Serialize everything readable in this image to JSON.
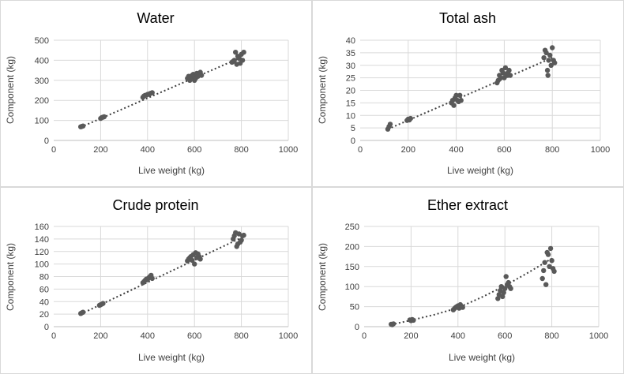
{
  "colors": {
    "point": "#595959",
    "trend": "#404040"
  },
  "chart_data": [
    {
      "type": "scatter",
      "title": "Water",
      "xlabel": "Live weight (kg)",
      "ylabel": "Component (kg)",
      "xlim": [
        0,
        1000
      ],
      "ylim": [
        0,
        500
      ],
      "xticks": [
        "0",
        "200",
        "400",
        "600",
        "800",
        "1000"
      ],
      "yticks": [
        "0",
        "100",
        "200",
        "300",
        "400",
        "500"
      ],
      "trendline": [
        [
          115,
          66
        ],
        [
          800,
          415
        ]
      ],
      "series": [
        {
          "name": "Water",
          "points": [
            [
              115,
              68
            ],
            [
              120,
              70
            ],
            [
              125,
              72
            ],
            [
              200,
              110
            ],
            [
              205,
              114
            ],
            [
              210,
              116
            ],
            [
              215,
              118
            ],
            [
              380,
              215
            ],
            [
              385,
              222
            ],
            [
              390,
              225
            ],
            [
              395,
              226
            ],
            [
              400,
              230
            ],
            [
              405,
              230
            ],
            [
              410,
              234
            ],
            [
              415,
              236
            ],
            [
              420,
              238
            ],
            [
              570,
              310
            ],
            [
              575,
              320
            ],
            [
              580,
              300
            ],
            [
              585,
              315
            ],
            [
              590,
              325
            ],
            [
              595,
              330
            ],
            [
              600,
              300
            ],
            [
              600,
              320
            ],
            [
              605,
              310
            ],
            [
              610,
              335
            ],
            [
              615,
              320
            ],
            [
              620,
              330
            ],
            [
              625,
              340
            ],
            [
              630,
              325
            ],
            [
              760,
              390
            ],
            [
              765,
              395
            ],
            [
              770,
              400
            ],
            [
              775,
              440
            ],
            [
              780,
              380
            ],
            [
              785,
              420
            ],
            [
              790,
              410
            ],
            [
              795,
              385
            ],
            [
              800,
              430
            ],
            [
              805,
              400
            ],
            [
              810,
              440
            ]
          ]
        }
      ]
    },
    {
      "type": "scatter",
      "title": "Total ash",
      "xlabel": "Live weight (kg)",
      "ylabel": "Component (kg)",
      "xlim": [
        0,
        1000
      ],
      "ylim": [
        0,
        40
      ],
      "xticks": [
        "0",
        "200",
        "400",
        "600",
        "800",
        "1000"
      ],
      "yticks": [
        "0",
        "5",
        "10",
        "15",
        "20",
        "25",
        "30",
        "35",
        "40"
      ],
      "trendline": [
        [
          115,
          4.5
        ],
        [
          800,
          33
        ]
      ],
      "series": [
        {
          "name": "Total ash",
          "points": [
            [
              115,
              4.5
            ],
            [
              120,
              5.5
            ],
            [
              125,
              6.5
            ],
            [
              195,
              8
            ],
            [
              200,
              8.5
            ],
            [
              205,
              8.2
            ],
            [
              210,
              8.8
            ],
            [
              380,
              15
            ],
            [
              385,
              16
            ],
            [
              390,
              14
            ],
            [
              395,
              17
            ],
            [
              400,
              18
            ],
            [
              405,
              16
            ],
            [
              410,
              15.5
            ],
            [
              415,
              18
            ],
            [
              420,
              16
            ],
            [
              570,
              23
            ],
            [
              575,
              24
            ],
            [
              580,
              26
            ],
            [
              585,
              25
            ],
            [
              590,
              28
            ],
            [
              595,
              27
            ],
            [
              600,
              25
            ],
            [
              605,
              29
            ],
            [
              610,
              26
            ],
            [
              615,
              27
            ],
            [
              620,
              28
            ],
            [
              625,
              26
            ],
            [
              765,
              33
            ],
            [
              770,
              36
            ],
            [
              775,
              35
            ],
            [
              780,
              28
            ],
            [
              782,
              26
            ],
            [
              785,
              32
            ],
            [
              790,
              34
            ],
            [
              795,
              30
            ],
            [
              800,
              37
            ],
            [
              805,
              32
            ],
            [
              810,
              31
            ]
          ]
        }
      ]
    },
    {
      "type": "scatter",
      "title": "Crude protein",
      "xlabel": "Live weight (kg)",
      "ylabel": "Component (kg)",
      "xlim": [
        0,
        1000
      ],
      "ylim": [
        0,
        160
      ],
      "xticks": [
        "0",
        "200",
        "400",
        "600",
        "800",
        "1000"
      ],
      "yticks": [
        "0",
        "20",
        "40",
        "60",
        "80",
        "100",
        "120",
        "140",
        "160"
      ],
      "trendline": [
        [
          115,
          20
        ],
        [
          800,
          142
        ]
      ],
      "series": [
        {
          "name": "Crude protein",
          "points": [
            [
              115,
              21
            ],
            [
              120,
              22
            ],
            [
              125,
              23
            ],
            [
              195,
              34
            ],
            [
              200,
              35
            ],
            [
              205,
              36
            ],
            [
              210,
              37
            ],
            [
              380,
              70
            ],
            [
              385,
              72
            ],
            [
              390,
              74
            ],
            [
              395,
              76
            ],
            [
              400,
              75
            ],
            [
              405,
              78
            ],
            [
              410,
              80
            ],
            [
              415,
              82
            ],
            [
              420,
              77
            ],
            [
              570,
              105
            ],
            [
              575,
              108
            ],
            [
              580,
              110
            ],
            [
              585,
              112
            ],
            [
              590,
              106
            ],
            [
              595,
              115
            ],
            [
              600,
              100
            ],
            [
              605,
              118
            ],
            [
              610,
              110
            ],
            [
              615,
              116
            ],
            [
              620,
              112
            ],
            [
              625,
              108
            ],
            [
              765,
              140
            ],
            [
              770,
              145
            ],
            [
              775,
              150
            ],
            [
              780,
              128
            ],
            [
              785,
              132
            ],
            [
              790,
              148
            ],
            [
              795,
              135
            ],
            [
              800,
              138
            ],
            [
              805,
              145
            ],
            [
              810,
              146
            ]
          ]
        }
      ]
    },
    {
      "type": "scatter",
      "title": "Ether extract",
      "xlabel": "Live weight (kg)",
      "ylabel": "Component (kg)",
      "xlim": [
        0,
        1000
      ],
      "ylim": [
        0,
        250
      ],
      "xticks": [
        "0",
        "200",
        "400",
        "600",
        "800",
        "1000"
      ],
      "yticks": [
        "0",
        "50",
        "100",
        "150",
        "200",
        "250"
      ],
      "trendline": [
        [
          115,
          5
        ],
        [
          200,
          16
        ],
        [
          300,
          30
        ],
        [
          400,
          47
        ],
        [
          500,
          73
        ],
        [
          600,
          102
        ],
        [
          700,
          135
        ],
        [
          800,
          170
        ]
      ],
      "series": [
        {
          "name": "Ether extract",
          "points": [
            [
              115,
              6
            ],
            [
              120,
              5
            ],
            [
              125,
              7
            ],
            [
              195,
              17
            ],
            [
              200,
              15
            ],
            [
              205,
              18
            ],
            [
              210,
              16
            ],
            [
              380,
              42
            ],
            [
              385,
              45
            ],
            [
              390,
              48
            ],
            [
              395,
              50
            ],
            [
              400,
              52
            ],
            [
              405,
              46
            ],
            [
              410,
              55
            ],
            [
              415,
              50
            ],
            [
              420,
              48
            ],
            [
              570,
              70
            ],
            [
              575,
              80
            ],
            [
              580,
              90
            ],
            [
              585,
              100
            ],
            [
              590,
              75
            ],
            [
              595,
              85
            ],
            [
              600,
              95
            ],
            [
              605,
              125
            ],
            [
              610,
              105
            ],
            [
              615,
              110
            ],
            [
              620,
              100
            ],
            [
              625,
              95
            ],
            [
              760,
              120
            ],
            [
              765,
              140
            ],
            [
              770,
              160
            ],
            [
              775,
              105
            ],
            [
              780,
              185
            ],
            [
              785,
              180
            ],
            [
              790,
              150
            ],
            [
              795,
              195
            ],
            [
              800,
              165
            ],
            [
              805,
              145
            ],
            [
              810,
              138
            ]
          ]
        }
      ]
    }
  ]
}
